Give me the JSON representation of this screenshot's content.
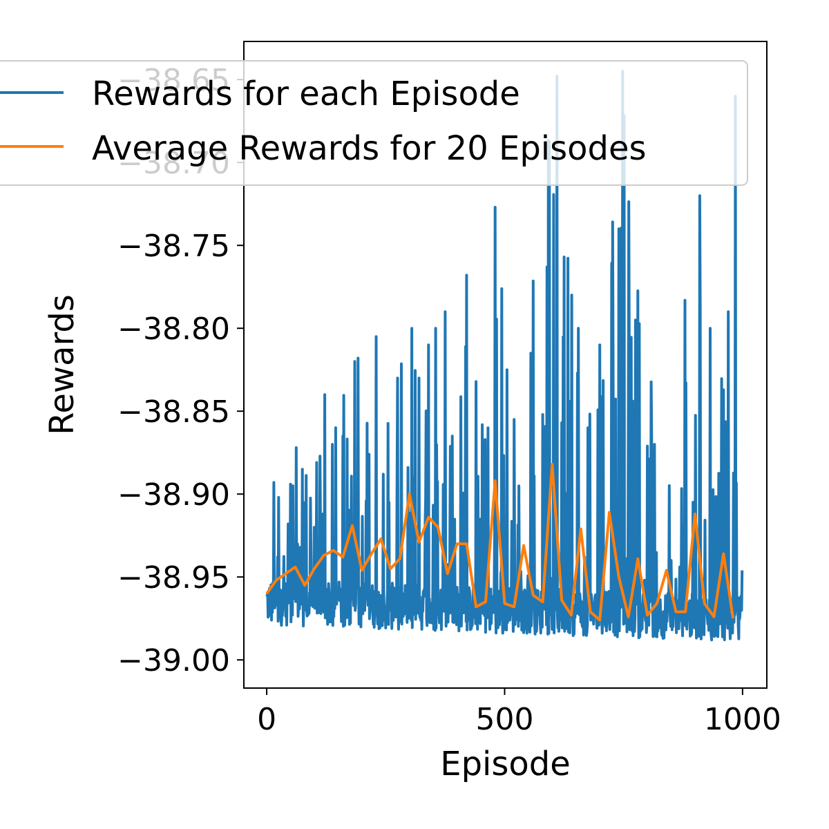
{
  "chart_data": {
    "type": "line",
    "xlabel": "Episode",
    "ylabel": "Rewards",
    "xlim": [
      -48,
      1051
    ],
    "ylim": [
      -39.017,
      -38.627
    ],
    "xticks": [
      0,
      500,
      1000
    ],
    "xtick_labels": [
      "0",
      "500",
      "1000"
    ],
    "yticks": [
      -38.65,
      -38.7,
      -38.75,
      -38.8,
      -38.85,
      -38.9,
      -38.95,
      -39.0
    ],
    "ytick_labels": [
      "−38.65",
      "−38.70",
      "−38.75",
      "−38.80",
      "−38.85",
      "−38.90",
      "−38.95",
      "−39.00"
    ],
    "grid": false,
    "legend": {
      "position": "top-left"
    },
    "series": [
      {
        "name": "Rewards for each Episode",
        "color": "#1f77b4",
        "generator": {
          "n": 1000,
          "base_start": -38.965,
          "base_end": -38.975,
          "spike_chance": 0.18,
          "envelope": [
            [
              0,
              -38.915
            ],
            [
              60,
              -38.88
            ],
            [
              120,
              -38.86
            ],
            [
              180,
              -38.83
            ],
            [
              240,
              -38.815
            ],
            [
              300,
              -38.81
            ],
            [
              360,
              -38.79
            ],
            [
              420,
              -38.775
            ],
            [
              470,
              -38.73
            ],
            [
              540,
              -38.79
            ],
            [
              600,
              -38.64
            ],
            [
              700,
              -38.78
            ],
            [
              740,
              -38.64
            ],
            [
              800,
              -38.8
            ],
            [
              900,
              -38.72
            ],
            [
              960,
              -38.8
            ],
            [
              980,
              -38.66
            ],
            [
              1000,
              -38.95
            ]
          ],
          "spikes": [
            [
              15,
              -38.893
            ],
            [
              25,
              -38.902
            ],
            [
              45,
              -38.918
            ],
            [
              55,
              -38.895
            ],
            [
              62,
              -38.872
            ],
            [
              75,
              -38.885
            ],
            [
              100,
              -38.92
            ],
            [
              118,
              -38.912
            ],
            [
              122,
              -38.84
            ],
            [
              138,
              -38.87
            ],
            [
              145,
              -38.86
            ],
            [
              160,
              -38.865
            ],
            [
              185,
              -38.82
            ],
            [
              192,
              -38.818
            ],
            [
              215,
              -38.876
            ],
            [
              230,
              -38.805
            ],
            [
              245,
              -38.888
            ],
            [
              275,
              -38.83
            ],
            [
              305,
              -38.8
            ],
            [
              320,
              -38.83
            ],
            [
              340,
              -38.81
            ],
            [
              355,
              -38.8
            ],
            [
              375,
              -38.79
            ],
            [
              390,
              -38.865
            ],
            [
              420,
              -38.768
            ],
            [
              450,
              -38.915
            ],
            [
              465,
              -38.86
            ],
            [
              480,
              -38.727
            ],
            [
              505,
              -38.825
            ],
            [
              520,
              -38.855
            ],
            [
              555,
              -38.815
            ],
            [
              580,
              -38.852
            ],
            [
              610,
              -38.648
            ],
            [
              625,
              -38.757
            ],
            [
              655,
              -38.8
            ],
            [
              675,
              -38.86
            ],
            [
              700,
              -38.81
            ],
            [
              740,
              -38.74
            ],
            [
              748,
              -38.645
            ],
            [
              760,
              -38.845
            ],
            [
              775,
              -38.795
            ],
            [
              815,
              -38.87
            ],
            [
              850,
              -38.94
            ],
            [
              875,
              -38.92
            ],
            [
              910,
              -38.72
            ],
            [
              932,
              -38.8
            ],
            [
              955,
              -38.935
            ],
            [
              970,
              -38.79
            ],
            [
              985,
              -38.66
            ]
          ]
        }
      },
      {
        "name": "Average Rewards for 20 Episodes",
        "color": "#ff7f0e",
        "x": [
          0,
          20,
          40,
          60,
          80,
          100,
          120,
          140,
          160,
          180,
          200,
          220,
          240,
          260,
          280,
          300,
          320,
          340,
          360,
          380,
          400,
          420,
          440,
          460,
          480,
          500,
          520,
          540,
          560,
          580,
          600,
          620,
          640,
          660,
          680,
          700,
          720,
          740,
          760,
          780,
          800,
          820,
          840,
          860,
          880,
          900,
          920,
          940,
          960,
          980
        ],
        "y": [
          -38.96,
          -38.952,
          -38.948,
          -38.944,
          -38.955,
          -38.945,
          -38.937,
          -38.934,
          -38.938,
          -38.919,
          -38.946,
          -38.936,
          -38.927,
          -38.945,
          -38.939,
          -38.9,
          -38.929,
          -38.914,
          -38.92,
          -38.948,
          -38.93,
          -38.93,
          -38.968,
          -38.965,
          -38.892,
          -38.966,
          -38.968,
          -38.931,
          -38.961,
          -38.965,
          -38.882,
          -38.964,
          -38.973,
          -38.921,
          -38.971,
          -38.976,
          -38.911,
          -38.95,
          -38.974,
          -38.939,
          -38.973,
          -38.966,
          -38.946,
          -38.971,
          -38.971,
          -38.912,
          -38.966,
          -38.974,
          -38.936,
          -38.975
        ]
      }
    ]
  }
}
